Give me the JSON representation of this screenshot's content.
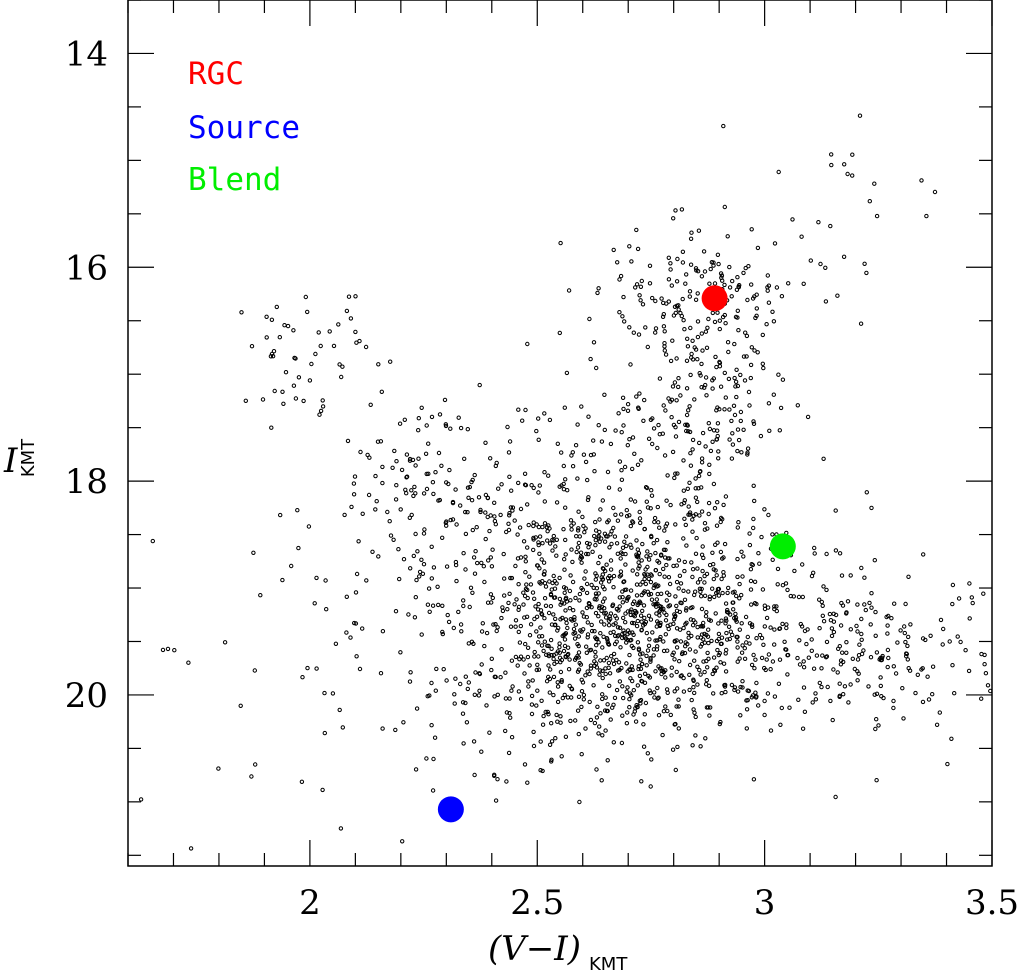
{
  "chart_data": {
    "type": "scatter",
    "title": "",
    "xlabel": {
      "main": "(V−I)",
      "sub": "KMT"
    },
    "ylabel": {
      "main": "I",
      "sub": "KMT"
    },
    "xlim": [
      1.6,
      3.5
    ],
    "ylim": [
      21.6,
      13.5
    ],
    "y_inverted": true,
    "x_ticks": [
      {
        "value": 2,
        "label": "2"
      },
      {
        "value": 2.5,
        "label": "2.5"
      },
      {
        "value": 3,
        "label": "3"
      },
      {
        "value": 3.5,
        "label": "3.5"
      }
    ],
    "y_ticks": [
      {
        "value": 14,
        "label": "14"
      },
      {
        "value": 16,
        "label": "16"
      },
      {
        "value": 18,
        "label": "18"
      },
      {
        "value": 20,
        "label": "20"
      }
    ],
    "grid": false,
    "legend_position": "top-left",
    "highlight_points": [
      {
        "name": "RGC",
        "x": 2.89,
        "y": 16.29,
        "color": "#ff0000"
      },
      {
        "name": "Source",
        "x": 2.31,
        "y": 21.07,
        "color": "#0000ff"
      },
      {
        "name": "Blend",
        "x": 3.04,
        "y": 18.61,
        "color": "#00ee00"
      }
    ],
    "star_field": {
      "description_of_distribution": "clump",
      "clusters": [
        {
          "cx": 2.68,
          "cy": 19.2,
          "sx": 0.2,
          "sy": 0.55,
          "n": 1050
        },
        {
          "cx": 2.88,
          "cy": 19.5,
          "sx": 0.32,
          "sy": 0.5,
          "n": 350
        },
        {
          "cx": 3.2,
          "cy": 19.6,
          "sx": 0.15,
          "sy": 0.3,
          "n": 120
        },
        {
          "cx": 2.85,
          "cy": 16.3,
          "sx": 0.09,
          "sy": 0.35,
          "n": 170
        },
        {
          "cx": 2.88,
          "cy": 17.4,
          "sx": 0.09,
          "sy": 0.5,
          "n": 160
        },
        {
          "cx": 2.25,
          "cy": 18.1,
          "sx": 0.12,
          "sy": 0.45,
          "n": 140
        },
        {
          "cx": 2.0,
          "cy": 16.8,
          "sx": 0.08,
          "sy": 0.35,
          "n": 50
        },
        {
          "cx": 3.15,
          "cy": 15.5,
          "sx": 0.12,
          "sy": 0.5,
          "n": 30
        },
        {
          "cx": 2.5,
          "cy": 20.3,
          "sx": 0.15,
          "sy": 0.3,
          "n": 60
        },
        {
          "cx": 2.0,
          "cy": 19.8,
          "sx": 0.25,
          "sy": 0.9,
          "n": 50
        },
        {
          "cx": 2.6,
          "cy": 18.0,
          "sx": 0.15,
          "sy": 0.6,
          "n": 140
        }
      ]
    }
  }
}
